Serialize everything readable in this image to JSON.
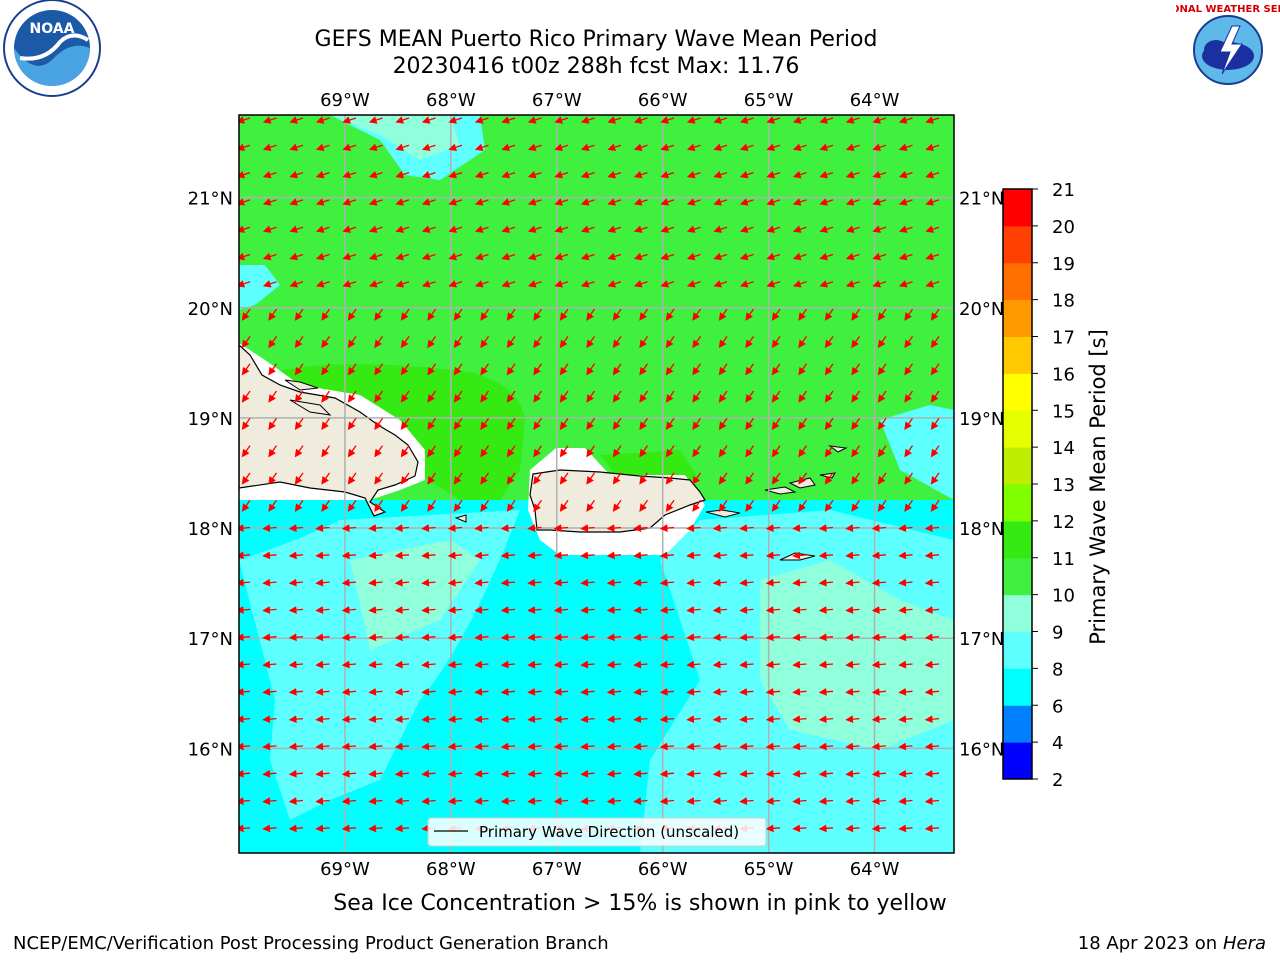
{
  "title": {
    "line1": "GEFS MEAN Puerto Rico Primary Wave Mean Period",
    "line2": "20230416 t00z 288h fcst   Max: 11.76"
  },
  "map": {
    "lon_labels": [
      "69°W",
      "68°W",
      "67°W",
      "66°W",
      "65°W",
      "64°W"
    ],
    "lat_labels": [
      "21°N",
      "20°N",
      "19°N",
      "18°N",
      "17°N",
      "16°N"
    ],
    "lon_range": [
      -70.0,
      -63.25
    ],
    "lat_range": [
      15.05,
      21.75
    ],
    "legend_label": "Primary Wave Direction (unscaled)",
    "arrow_color": "#ff0000",
    "land_color": "#efecdd",
    "colors": {
      "c8_9": "#5effff",
      "c9_10": "#8fffdc",
      "c10_11": "#3ff03f",
      "c11_12": "#35e913",
      "c6_8": "#00ffff"
    }
  },
  "colorbar": {
    "label": "Primary Wave Mean Period [s]",
    "ticks": [
      "2",
      "4",
      "6",
      "8",
      "9",
      "10",
      "11",
      "12",
      "13",
      "14",
      "15",
      "16",
      "17",
      "18",
      "19",
      "20",
      "21"
    ],
    "colors": [
      "#0000ff",
      "#0080ff",
      "#00ffff",
      "#5effff",
      "#8fffdc",
      "#3ff03f",
      "#35e913",
      "#80ff00",
      "#bfee00",
      "#e5ff00",
      "#ffff00",
      "#ffc800",
      "#ff9900",
      "#ff7000",
      "#ff4000",
      "#ff0000"
    ]
  },
  "logos": {
    "left": "NOAA",
    "right": "NATIONAL WEATHER SERVICE"
  },
  "footer": {
    "caption": "Sea Ice Concentration > 15% is shown in pink to yellow",
    "credit": "NCEP/EMC/Verification Post Processing Product Generation Branch",
    "date": "18 Apr 2023 on",
    "machine": "Hera"
  }
}
